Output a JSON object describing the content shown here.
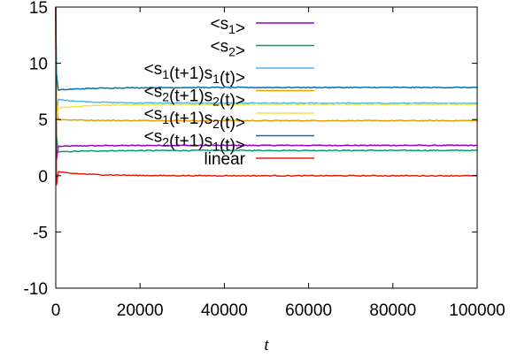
{
  "chart_data": {
    "type": "line",
    "title": "",
    "xlabel": "t",
    "ylabel": "",
    "xlim": [
      0,
      100000
    ],
    "ylim": [
      -10,
      15
    ],
    "xticks": [
      0,
      20000,
      40000,
      60000,
      80000,
      100000
    ],
    "yticks": [
      -10,
      -5,
      0,
      5,
      10,
      15
    ],
    "grid": false,
    "legend_position": "top-right",
    "series": [
      {
        "name": "<s1>",
        "label_main": "<s",
        "label_parts": [
          [
            "<s",
            ""
          ],
          [
            "1",
            "sub"
          ],
          [
            ">",
            ""
          ]
        ],
        "color": "#9400d3",
        "steady_value": 2.7,
        "start_value": 2.6
      },
      {
        "name": "<s2>",
        "label_parts": [
          [
            "<s",
            ""
          ],
          [
            "2",
            "sub"
          ],
          [
            ">",
            ""
          ]
        ],
        "color": "#009e73",
        "steady_value": 2.25,
        "start_value": 2.1
      },
      {
        "name": "<s1(t+1)s1(t)>",
        "label_parts": [
          [
            "<s",
            ""
          ],
          [
            "1",
            "sub"
          ],
          [
            "(t+1)s",
            ""
          ],
          [
            "1",
            "sub"
          ],
          [
            "(t)>",
            ""
          ]
        ],
        "color": "#56b4e9",
        "steady_value": 6.45,
        "start_value": 6.8
      },
      {
        "name": "<s2(t+1)s2(t)>",
        "label_parts": [
          [
            "<s",
            ""
          ],
          [
            "2",
            "sub"
          ],
          [
            "(t+1)s",
            ""
          ],
          [
            "2",
            "sub"
          ],
          [
            "(t)>",
            ""
          ]
        ],
        "color": "#e69f00",
        "steady_value": 4.9,
        "start_value": 5.0
      },
      {
        "name": "<s1(t+1)s2(t)>",
        "label_parts": [
          [
            "<s",
            ""
          ],
          [
            "1",
            "sub"
          ],
          [
            "(t+1)s",
            ""
          ],
          [
            "2",
            "sub"
          ],
          [
            "(t)>",
            ""
          ]
        ],
        "color": "#f0e442",
        "steady_value": 6.35,
        "start_value": 6.0
      },
      {
        "name": "<s2(t+1)s1(t)>",
        "label_parts": [
          [
            "<s",
            ""
          ],
          [
            "2",
            "sub"
          ],
          [
            "(t+1)s",
            ""
          ],
          [
            "1",
            "sub"
          ],
          [
            "(t)>",
            ""
          ]
        ],
        "color": "#0072b2",
        "steady_value": 7.85,
        "start_value": 7.6
      },
      {
        "name": "linear",
        "label_parts": [
          [
            "linear",
            ""
          ]
        ],
        "color": "#e51e10",
        "steady_value": 0.0,
        "start_value": 0.35
      }
    ]
  }
}
